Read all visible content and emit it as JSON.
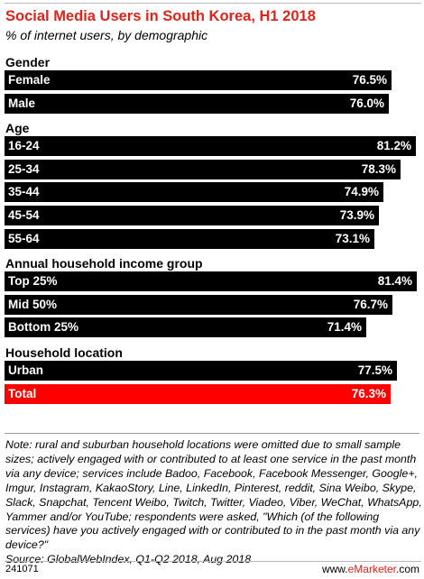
{
  "chart_data": {
    "type": "bar",
    "orientation": "horizontal",
    "title": "Social Media Users in South Korea, H1 2018",
    "subtitle": "% of internet users, by demographic",
    "xlim": [
      0,
      82
    ],
    "groups": [
      {
        "name": "Gender",
        "bars": [
          {
            "label": "Female",
            "value": 76.5,
            "value_label": "76.5%"
          },
          {
            "label": "Male",
            "value": 76.0,
            "value_label": "76.0%"
          }
        ]
      },
      {
        "name": "Age",
        "bars": [
          {
            "label": "16-24",
            "value": 81.2,
            "value_label": "81.2%"
          },
          {
            "label": "25-34",
            "value": 78.3,
            "value_label": "78.3%"
          },
          {
            "label": "35-44",
            "value": 74.9,
            "value_label": "74.9%"
          },
          {
            "label": "45-54",
            "value": 73.9,
            "value_label": "73.9%"
          },
          {
            "label": "55-64",
            "value": 73.1,
            "value_label": "73.1%"
          }
        ]
      },
      {
        "name": "Annual household income group",
        "bars": [
          {
            "label": "Top 25%",
            "value": 81.4,
            "value_label": "81.4%"
          },
          {
            "label": "Mid 50%",
            "value": 76.7,
            "value_label": "76.7%"
          },
          {
            "label": "Bottom 25%",
            "value": 71.4,
            "value_label": "71.4%"
          }
        ]
      },
      {
        "name": "Household location",
        "bars": [
          {
            "label": "Urban",
            "value": 77.5,
            "value_label": "77.5%"
          },
          {
            "label": "Total",
            "value": 76.3,
            "value_label": "76.3%",
            "highlight": true
          }
        ]
      }
    ],
    "colors": {
      "bar": "#000000",
      "highlight": "#ff0000",
      "title": "#e2231a"
    }
  },
  "note": "Note: rural and suburban household locations were omitted due to small sample sizes; actively engaged with or contributed to at least one service in the past month via any device; services include Badoo, Facebook, Facebook Messenger, Google+, Imgur, Instagram, KakaoStory, Line, LinkedIn, Pinterest, reddit, Sina Weibo, Skype, Slack, Snapchat, Tencent Weibo, Twitch, Twitter, Viadeo, Viber, WeChat, WhatsApp, Yammer and/or YouTube; respondents were asked, \"Which (of the following services) have you actively engaged with or contributed to in the past month via any device?\"",
  "source": "Source: GlobalWebIndex, Q1-Q2 2018, Aug 2018",
  "footer": {
    "chart_id": "241071",
    "logo_prefix": "www.",
    "logo_brand": "eMarketer",
    "logo_suffix": ".com"
  }
}
